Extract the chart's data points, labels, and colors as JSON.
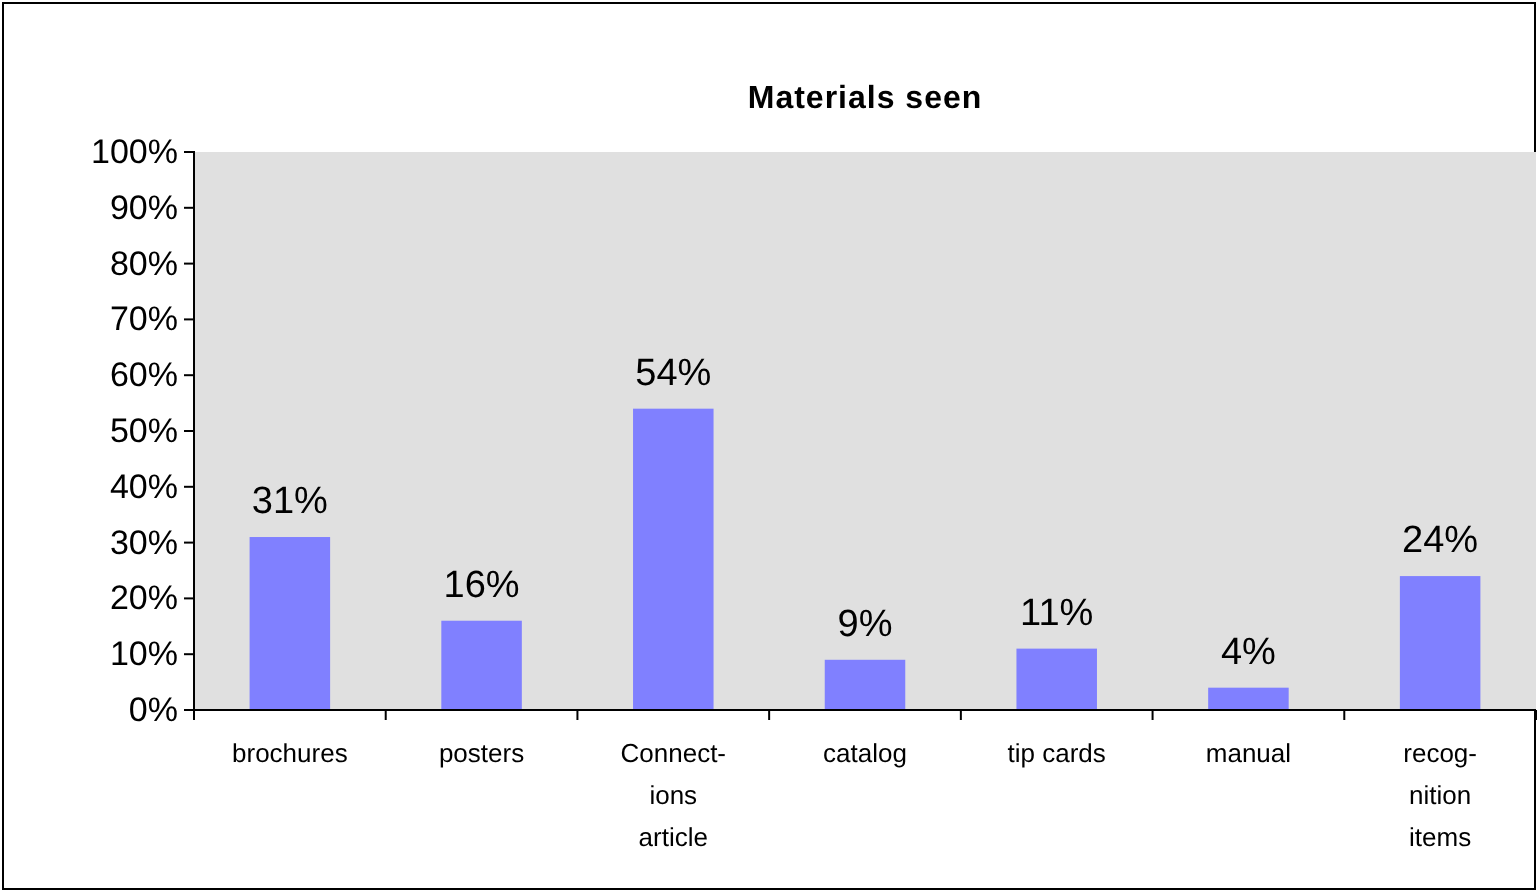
{
  "chart_data": {
    "type": "bar",
    "title": "Materials seen",
    "categories": [
      "brochures",
      "posters",
      "Connect-\nions\narticle",
      "catalog",
      "tip cards",
      "manual",
      "recog-\nnition\nitems"
    ],
    "values": [
      31,
      16,
      54,
      9,
      11,
      4,
      24
    ],
    "value_labels": [
      "31%",
      "16%",
      "54%",
      "9%",
      "11%",
      "4%",
      "24%"
    ],
    "color": "#8080ff",
    "ylim": [
      0,
      100
    ],
    "yticks": [
      {
        "value": 0,
        "label": "0%"
      },
      {
        "value": 10,
        "label": "10%"
      },
      {
        "value": 20,
        "label": "20%"
      },
      {
        "value": 30,
        "label": "30%"
      },
      {
        "value": 40,
        "label": "40%"
      },
      {
        "value": 50,
        "label": "50%"
      },
      {
        "value": 60,
        "label": "60%"
      },
      {
        "value": 70,
        "label": "70%"
      },
      {
        "value": 80,
        "label": "80%"
      },
      {
        "value": 90,
        "label": "90%"
      },
      {
        "value": 100,
        "label": "100%"
      }
    ],
    "grid": false
  }
}
